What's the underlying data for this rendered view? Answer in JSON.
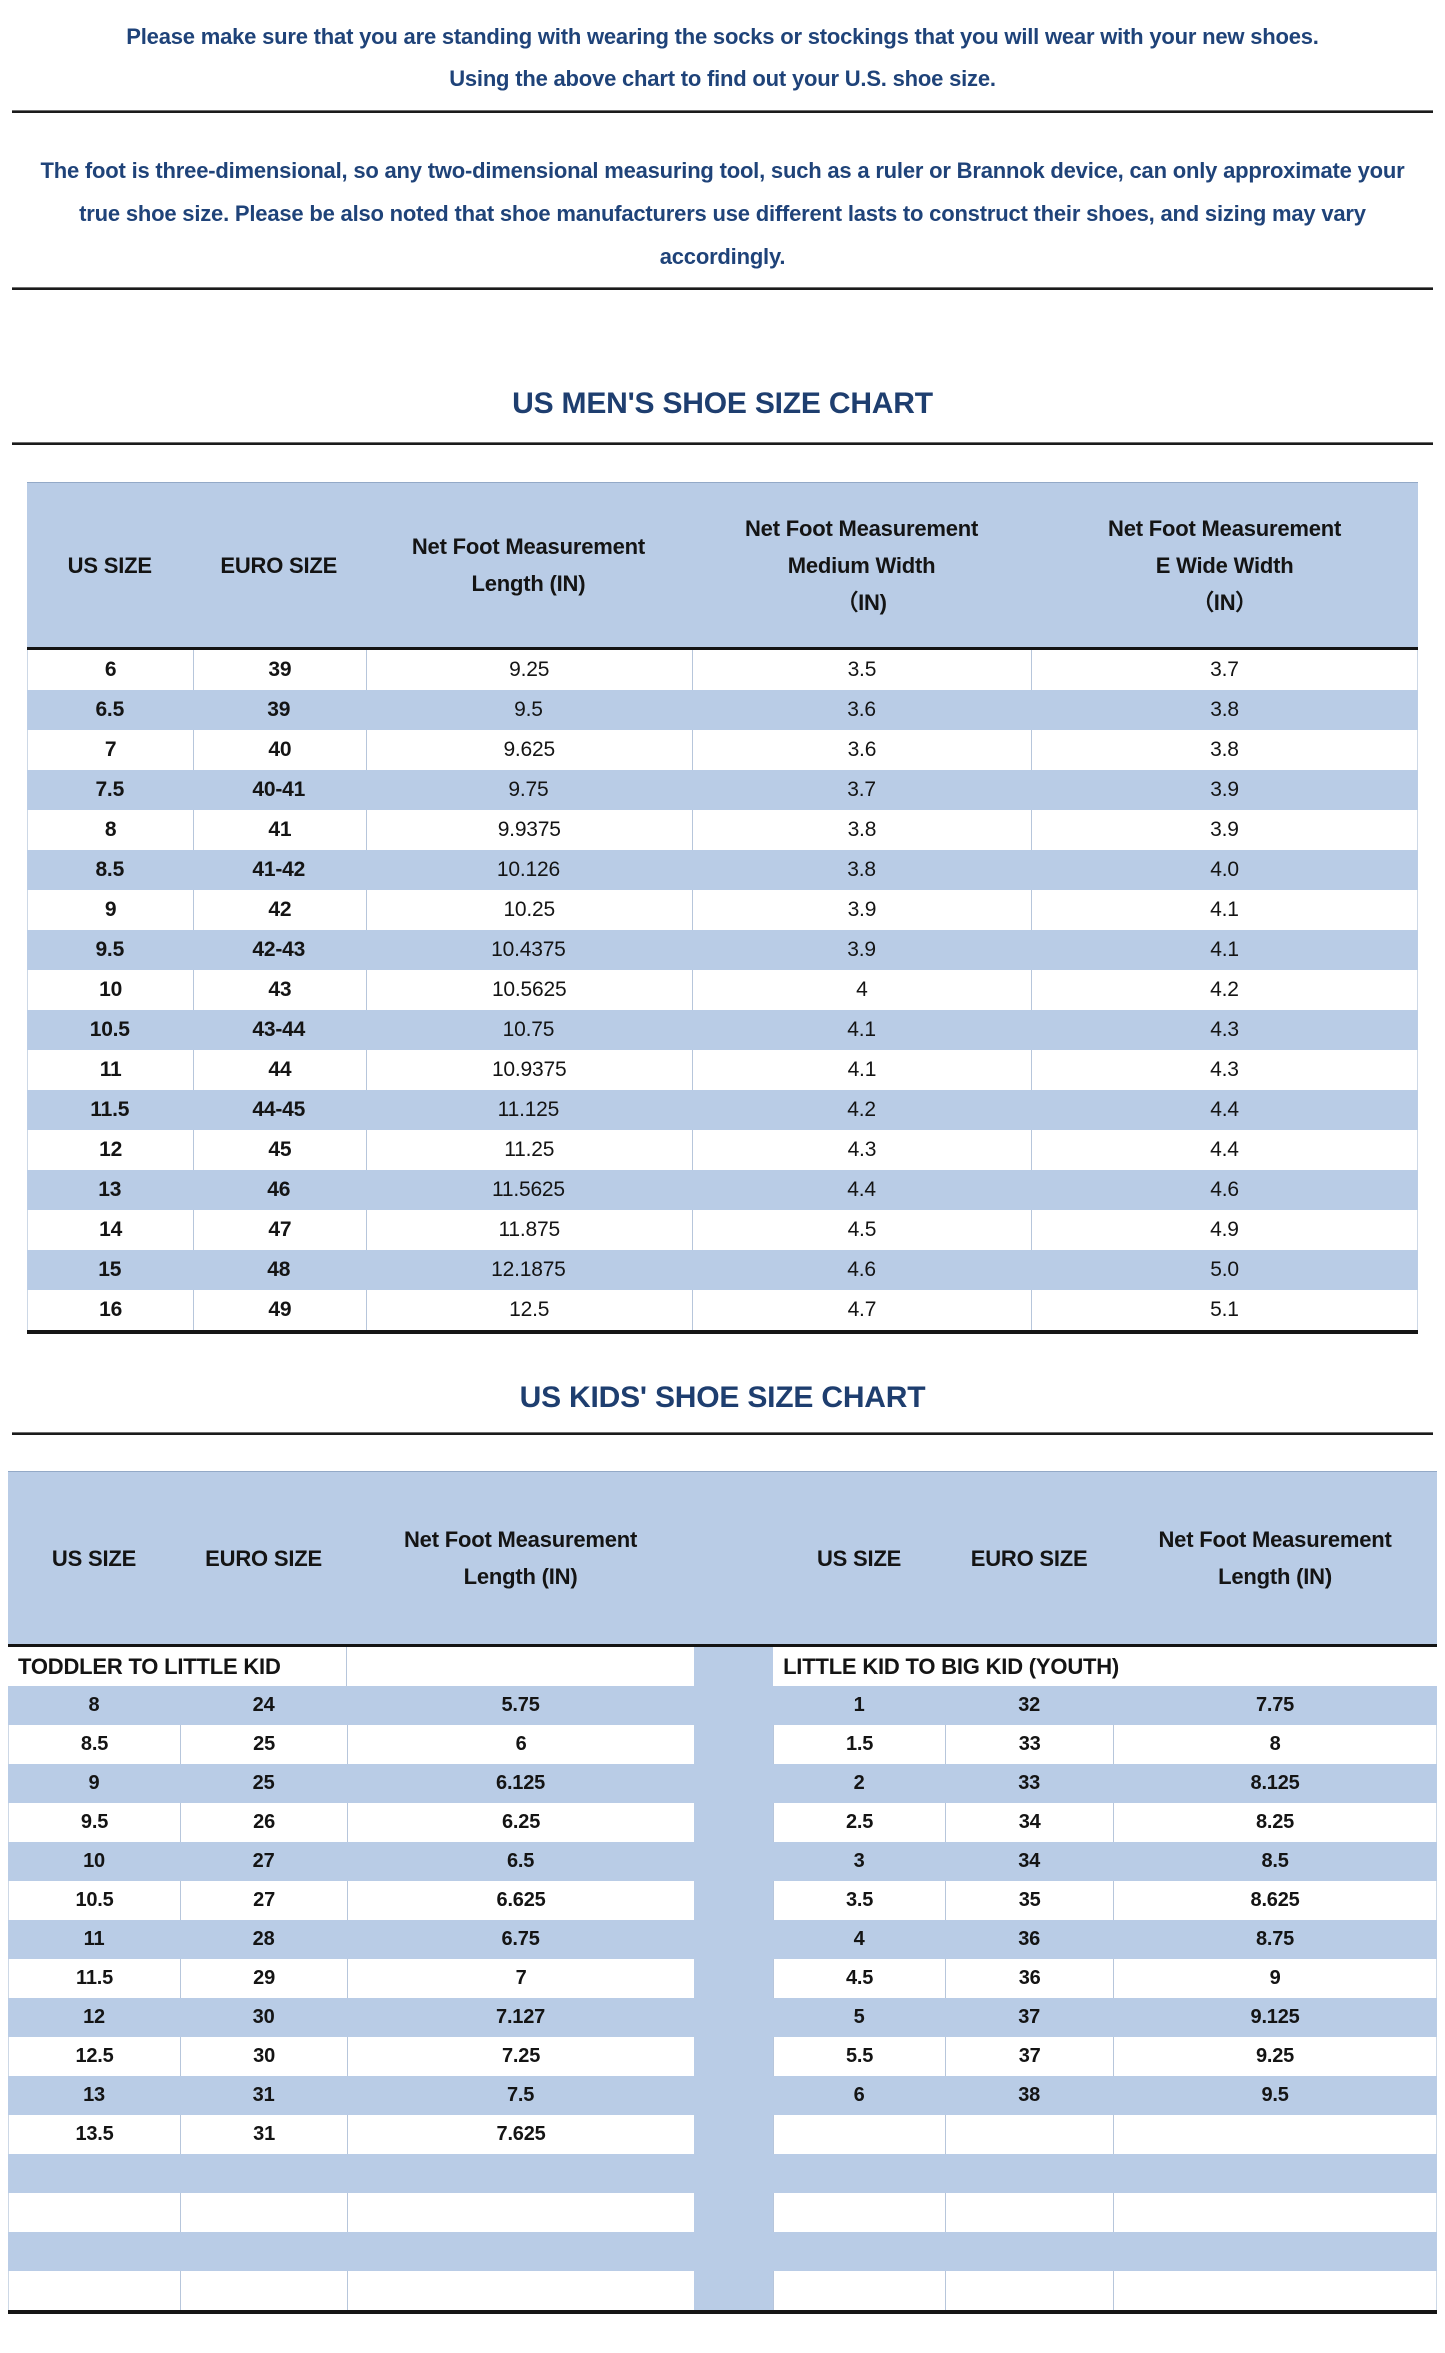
{
  "intro": {
    "line1": "Please make sure that you are standing with wearing the socks or stockings that you will wear with your new shoes.",
    "line2": "Using the above chart to find out your U.S. shoe size.",
    "note": "The foot is three-dimensional, so any two-dimensional measuring tool, such as a ruler or Brannok device, can only approximate your true shoe size. Please be also noted that shoe manufacturers use different lasts to construct their shoes, and sizing may vary accordingly."
  },
  "mens_chart": {
    "title": "US MEN'S SHOE SIZE CHART",
    "headers": [
      "US SIZE",
      "EURO SIZE",
      "Net Foot Measurement\nLength (IN)",
      "Net Foot Measurement\nMedium Width\n（IN)",
      "Net Foot Measurement\nE Wide Width\n（IN）"
    ],
    "rows": [
      [
        "6",
        "39",
        "9.25",
        "3.5",
        "3.7"
      ],
      [
        "6.5",
        "39",
        "9.5",
        "3.6",
        "3.8"
      ],
      [
        "7",
        "40",
        "9.625",
        "3.6",
        "3.8"
      ],
      [
        "7.5",
        "40-41",
        "9.75",
        "3.7",
        "3.9"
      ],
      [
        "8",
        "41",
        "9.9375",
        "3.8",
        "3.9"
      ],
      [
        "8.5",
        "41-42",
        "10.126",
        "3.8",
        "4.0"
      ],
      [
        "9",
        "42",
        "10.25",
        "3.9",
        "4.1"
      ],
      [
        "9.5",
        "42-43",
        "10.4375",
        "3.9",
        "4.1"
      ],
      [
        "10",
        "43",
        "10.5625",
        "4",
        "4.2"
      ],
      [
        "10.5",
        "43-44",
        "10.75",
        "4.1",
        "4.3"
      ],
      [
        "11",
        "44",
        "10.9375",
        "4.1",
        "4.3"
      ],
      [
        "11.5",
        "44-45",
        "11.125",
        "4.2",
        "4.4"
      ],
      [
        "12",
        "45",
        "11.25",
        "4.3",
        "4.4"
      ],
      [
        "13",
        "46",
        "11.5625",
        "4.4",
        "4.6"
      ],
      [
        "14",
        "47",
        "11.875",
        "4.5",
        "4.9"
      ],
      [
        "15",
        "48",
        "12.1875",
        "4.6",
        "5.0"
      ],
      [
        "16",
        "49",
        "12.5",
        "4.7",
        "5.1"
      ]
    ]
  },
  "kids_chart": {
    "title": "US KIDS' SHOE SIZE CHART",
    "left": {
      "headers": [
        "US SIZE",
        "EURO SIZE",
        "Net Foot Measurement\nLength (IN)"
      ],
      "group_label": "TODDLER TO LITTLE KID",
      "rows": [
        [
          "8",
          "24",
          "5.75"
        ],
        [
          "8.5",
          "25",
          "6"
        ],
        [
          "9",
          "25",
          "6.125"
        ],
        [
          "9.5",
          "26",
          "6.25"
        ],
        [
          "10",
          "27",
          "6.5"
        ],
        [
          "10.5",
          "27",
          "6.625"
        ],
        [
          "11",
          "28",
          "6.75"
        ],
        [
          "11.5",
          "29",
          "7"
        ],
        [
          "12",
          "30",
          "7.127"
        ],
        [
          "12.5",
          "30",
          "7.25"
        ],
        [
          "13",
          "31",
          "7.5"
        ],
        [
          "13.5",
          "31",
          "7.625"
        ]
      ]
    },
    "right": {
      "headers": [
        "US SIZE",
        "EURO SIZE",
        "Net Foot Measurement\nLength (IN)"
      ],
      "group_label": "LITTLE KID TO BIG KID (YOUTH)",
      "rows": [
        [
          "1",
          "32",
          "7.75"
        ],
        [
          "1.5",
          "33",
          "8"
        ],
        [
          "2",
          "33",
          "8.125"
        ],
        [
          "2.5",
          "34",
          "8.25"
        ],
        [
          "3",
          "34",
          "8.5"
        ],
        [
          "3.5",
          "35",
          "8.625"
        ],
        [
          "4",
          "36",
          "8.75"
        ],
        [
          "4.5",
          "36",
          "9"
        ],
        [
          "5",
          "37",
          "9.125"
        ],
        [
          "5.5",
          "37",
          "9.25"
        ],
        [
          "6",
          "38",
          "9.5"
        ]
      ]
    },
    "trailing_empty_rows": 4
  },
  "colors": {
    "band_blue": "#b9cce6",
    "text_navy": "#1f4379",
    "title_navy": "#1e3e6f",
    "table_ink": "#141414"
  }
}
